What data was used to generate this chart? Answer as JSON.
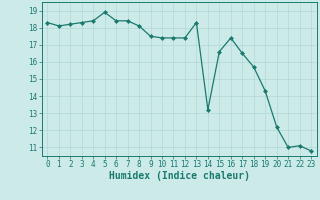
{
  "x": [
    0,
    1,
    2,
    3,
    4,
    5,
    6,
    7,
    8,
    9,
    10,
    11,
    12,
    13,
    14,
    15,
    16,
    17,
    18,
    19,
    20,
    21,
    22,
    23
  ],
  "y": [
    18.3,
    18.1,
    18.2,
    18.3,
    18.4,
    18.9,
    18.4,
    18.4,
    18.1,
    17.5,
    17.4,
    17.4,
    17.4,
    18.3,
    13.2,
    16.6,
    17.4,
    16.5,
    15.7,
    14.3,
    12.2,
    11.0,
    11.1,
    10.8
  ],
  "xlabel": "Humidex (Indice chaleur)",
  "ylim_min": 10.5,
  "ylim_max": 19.5,
  "xlim_min": -0.5,
  "xlim_max": 23.5,
  "yticks": [
    11,
    12,
    13,
    14,
    15,
    16,
    17,
    18,
    19
  ],
  "xticks": [
    0,
    1,
    2,
    3,
    4,
    5,
    6,
    7,
    8,
    9,
    10,
    11,
    12,
    13,
    14,
    15,
    16,
    17,
    18,
    19,
    20,
    21,
    22,
    23
  ],
  "line_color": "#1a7a6e",
  "bg_color": "#cceae8",
  "grid_color": "#b0d8d6",
  "tick_color": "#1a7a6e",
  "xlabel_fontsize": 7,
  "tick_fontsize": 5.5
}
